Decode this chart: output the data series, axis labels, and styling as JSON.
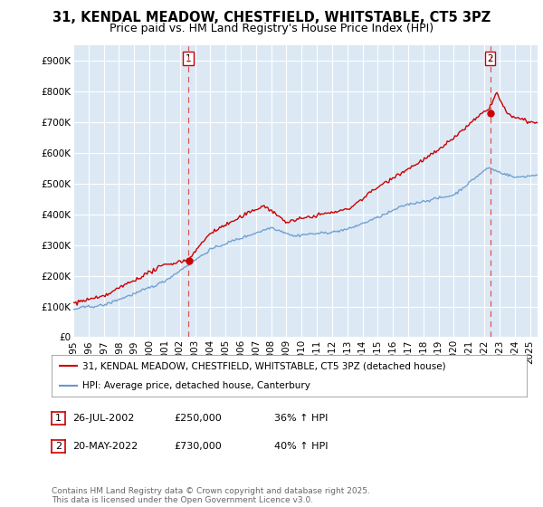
{
  "title": "31, KENDAL MEADOW, CHESTFIELD, WHITSTABLE, CT5 3PZ",
  "subtitle": "Price paid vs. HM Land Registry's House Price Index (HPI)",
  "title_fontsize": 10.5,
  "subtitle_fontsize": 9,
  "background_color": "#ffffff",
  "plot_bg_color": "#dce9f5",
  "grid_color": "#ffffff",
  "red_color": "#cc0000",
  "blue_color": "#6699cc",
  "dashed_red": "#dd5555",
  "yticks": [
    0,
    100000,
    200000,
    300000,
    400000,
    500000,
    600000,
    700000,
    800000,
    900000
  ],
  "ytick_labels": [
    "£0",
    "£100K",
    "£200K",
    "£300K",
    "£400K",
    "£500K",
    "£600K",
    "£700K",
    "£800K",
    "£900K"
  ],
  "ylim": [
    0,
    950000
  ],
  "xlim_left": 1995,
  "xlim_right": 2025.5,
  "sale1_year": 2002.57,
  "sale1_price": 250000,
  "sale2_year": 2022.38,
  "sale2_price": 730000,
  "legend_line1": "31, KENDAL MEADOW, CHESTFIELD, WHITSTABLE, CT5 3PZ (detached house)",
  "legend_line2": "HPI: Average price, detached house, Canterbury",
  "ann1_date": "26-JUL-2002",
  "ann1_price": "£250,000",
  "ann1_hpi": "36% ↑ HPI",
  "ann2_date": "20-MAY-2022",
  "ann2_price": "£730,000",
  "ann2_hpi": "40% ↑ HPI",
  "footer": "Contains HM Land Registry data © Crown copyright and database right 2025.\nThis data is licensed under the Open Government Licence v3.0.",
  "xtick_years": [
    1995,
    1996,
    1997,
    1998,
    1999,
    2000,
    2001,
    2002,
    2003,
    2004,
    2005,
    2006,
    2007,
    2008,
    2009,
    2010,
    2011,
    2012,
    2013,
    2014,
    2015,
    2016,
    2017,
    2018,
    2019,
    2020,
    2021,
    2022,
    2023,
    2024,
    2025
  ]
}
